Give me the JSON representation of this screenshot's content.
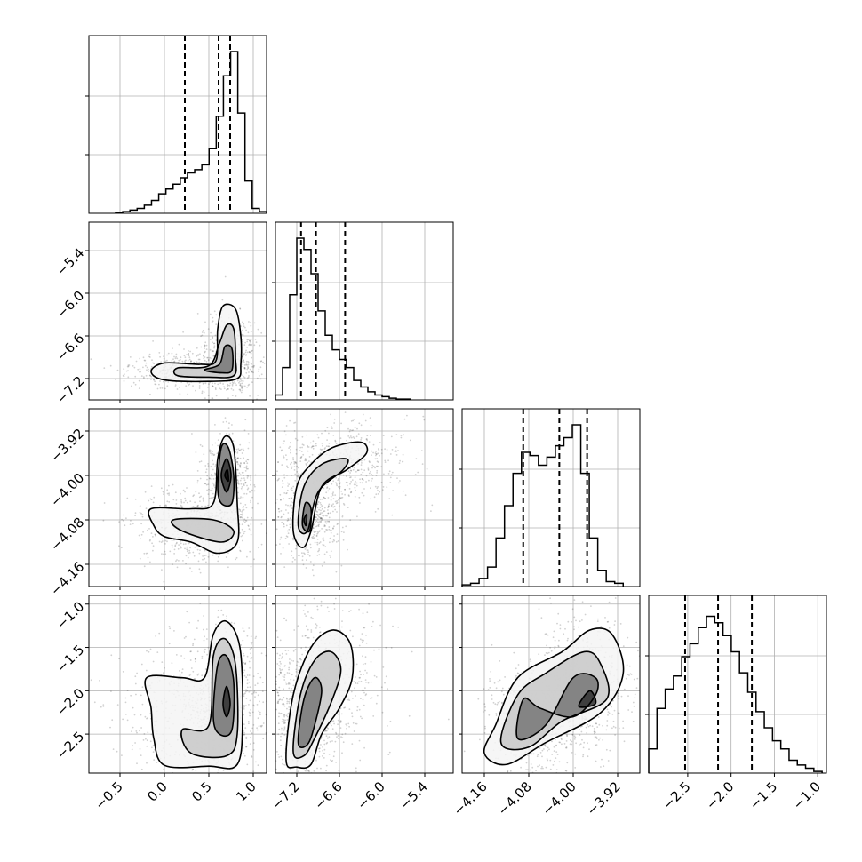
{
  "chart_data": {
    "type": "corner",
    "parameters": [
      {
        "ticks": [
          "−0.5",
          "0.0",
          "0.5",
          "1.0"
        ],
        "tick_values": [
          -0.5,
          0.0,
          0.5,
          1.0
        ],
        "range": [
          -0.85,
          1.15
        ],
        "quantiles": [
          0.23,
          0.61,
          0.74
        ],
        "hist": [
          0.005,
          0.01,
          0.02,
          0.03,
          0.05,
          0.08,
          0.12,
          0.15,
          0.18,
          0.22,
          0.25,
          0.27,
          0.3,
          0.4,
          0.6,
          0.85,
          1.0,
          0.62,
          0.2,
          0.03,
          0.01
        ],
        "hist_range": [
          -0.55,
          1.15
        ]
      },
      {
        "ticks": [
          "−7.2",
          "−6.6",
          "−6.0",
          "−5.4"
        ],
        "tick_values": [
          -7.2,
          -6.6,
          -6.0,
          -5.4
        ],
        "range": [
          -7.5,
          -5.0
        ],
        "quantiles": [
          -7.14,
          -6.93,
          -6.52
        ],
        "hist": [
          0.03,
          0.2,
          0.65,
          1.0,
          0.93,
          0.78,
          0.55,
          0.4,
          0.31,
          0.25,
          0.2,
          0.12,
          0.08,
          0.05,
          0.03,
          0.02,
          0.01,
          0.005,
          0.005
        ],
        "hist_range": [
          -7.5,
          -5.6
        ]
      },
      {
        "ticks": [
          "−4.16",
          "−4.08",
          "−4.00",
          "−3.92"
        ],
        "tick_values": [
          -4.16,
          -4.08,
          -4.0,
          -3.92
        ],
        "range": [
          -4.2,
          -3.88
        ],
        "quantiles": [
          -4.09,
          -4.025,
          -3.975
        ],
        "hist": [
          0.01,
          0.02,
          0.05,
          0.12,
          0.3,
          0.5,
          0.7,
          0.83,
          0.81,
          0.75,
          0.8,
          0.87,
          0.92,
          1.0,
          0.7,
          0.3,
          0.1,
          0.03,
          0.02
        ],
        "hist_range": [
          -4.2,
          -3.91
        ]
      },
      {
        "ticks": [
          "−2.5",
          "−2.0",
          "−1.5",
          "−1.0"
        ],
        "tick_values": [
          -2.5,
          -2.0,
          -1.5,
          -1.0
        ],
        "range": [
          -2.95,
          -0.9
        ],
        "quantiles": [
          -2.53,
          -2.15,
          -1.76
        ],
        "hist": [
          0.15,
          0.4,
          0.52,
          0.6,
          0.72,
          0.8,
          0.9,
          0.97,
          0.93,
          0.85,
          0.75,
          0.62,
          0.5,
          0.38,
          0.28,
          0.2,
          0.15,
          0.08,
          0.05,
          0.03,
          0.01
        ],
        "hist_range": [
          -2.95,
          -0.95
        ]
      }
    ]
  }
}
